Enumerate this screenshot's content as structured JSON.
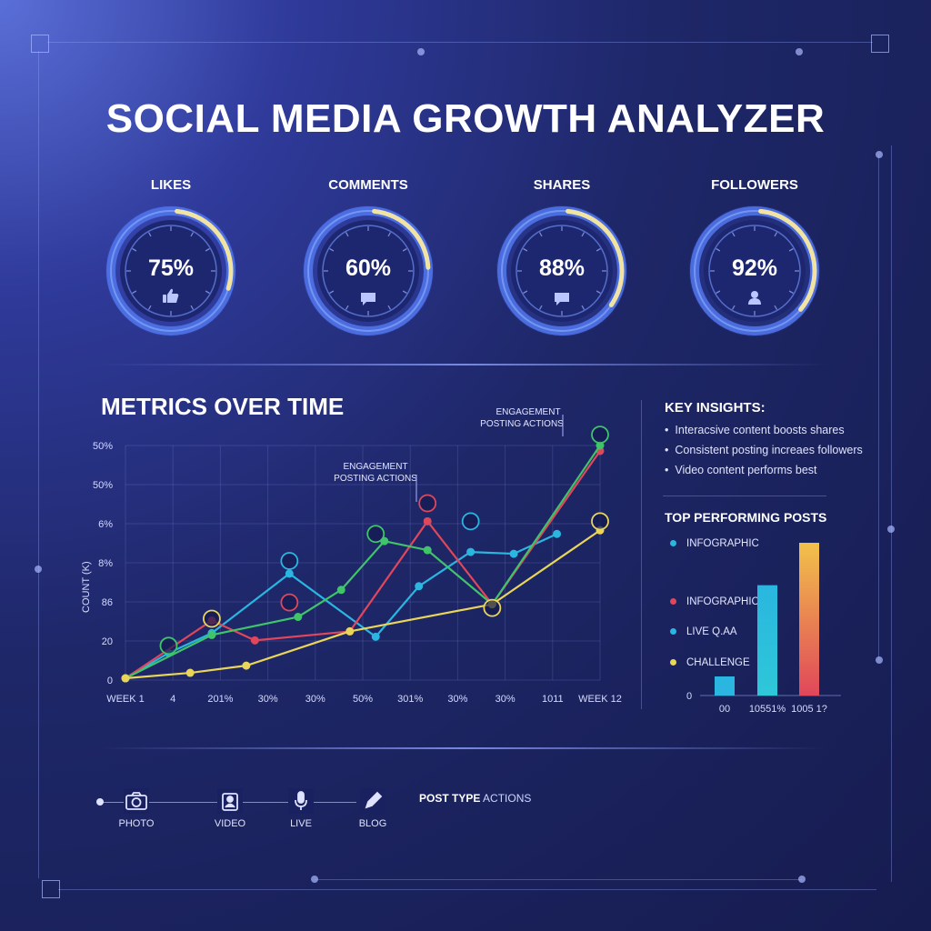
{
  "title": "SOCIAL MEDIA GROWTH ANALYZER",
  "gauges": [
    {
      "label": "LIKES",
      "value_text": "75%",
      "value": 75,
      "icon": "thumbs-up-icon"
    },
    {
      "label": "COMMENTS",
      "value_text": "60%",
      "value": 60,
      "icon": "comment-icon"
    },
    {
      "label": "SHARES",
      "value_text": "88%",
      "value": 88,
      "icon": "comment-icon"
    },
    {
      "label": "FOLLOWERS",
      "value_text": "92%",
      "value": 92,
      "icon": "user-icon"
    }
  ],
  "metrics": {
    "title": "METRICS OVER TIME",
    "annotation_top": [
      "ENGAGEMENT",
      "POSTING ACTIONS"
    ],
    "annotation_mid": [
      "ENGAGEMENT",
      "POSTING ACTIONS"
    ]
  },
  "insights": {
    "title": "KEY INSIGHTS:",
    "items": [
      "Interacsive content boosts shares",
      "Consistent posting increaes followers",
      "Video content performs best"
    ]
  },
  "top_posts": {
    "title": "TOP PERFORMING POSTS",
    "legend": [
      {
        "label": "INFOGRAPHIC",
        "color": "#2ab6e0"
      },
      {
        "label": "INFOGRAPHIC",
        "color": "#e0475a"
      },
      {
        "label": "LIVE Q.AA",
        "color": "#2ab6e0"
      },
      {
        "label": "CHALLENGE",
        "color": "#e8d55a"
      }
    ],
    "y_tick": "0"
  },
  "post_types": {
    "title_bold": "POST TYPE",
    "title_rest": " ACTIONS",
    "items": [
      {
        "label": "PHOTO",
        "icon": "camera-icon"
      },
      {
        "label": "VIDEO",
        "icon": "video-person-icon"
      },
      {
        "label": "LIVE",
        "icon": "microphone-icon"
      },
      {
        "label": "BLOG",
        "icon": "pencil-icon"
      }
    ]
  },
  "chart_data": [
    {
      "type": "line",
      "title": "METRICS OVER TIME",
      "ylabel": "COUNT (K)",
      "xlabel": "",
      "x_tick_labels": [
        "WEEK 1",
        "4",
        "201%",
        "30%",
        "30%",
        "50%",
        "301%",
        "30%",
        "30%",
        "1011",
        "WEEK 12"
      ],
      "y_tick_labels": [
        "0",
        "20",
        "86",
        "8%",
        "6%",
        "50%",
        "50%"
      ],
      "grid": true,
      "series": [
        {
          "color": "#2ab6e0",
          "x": [
            1,
            2,
            3,
            4.8,
            6.8,
            7.8,
            9,
            10,
            11
          ],
          "y": [
            1,
            15,
            26,
            59,
            24,
            52,
            71,
            70,
            81
          ]
        },
        {
          "color": "#e0475a",
          "x": [
            1,
            3,
            4,
            6.2,
            8,
            9.5,
            12
          ],
          "y": [
            1,
            33,
            22,
            27,
            88,
            42,
            127
          ]
        },
        {
          "color": "#3fc46a",
          "x": [
            1,
            3,
            5,
            6,
            7,
            8,
            9.5,
            12
          ],
          "y": [
            1,
            25,
            35,
            50,
            77,
            72,
            42,
            135
          ]
        },
        {
          "color": "#e8d55a",
          "x": [
            1,
            2.5,
            3.8,
            6.2,
            9.5,
            12
          ],
          "y": [
            1,
            4,
            8,
            27,
            42,
            83
          ]
        }
      ]
    },
    {
      "type": "bar",
      "title": "TOP PERFORMING POSTS",
      "categories": [
        "00",
        "10551%",
        "1005 1?"
      ],
      "values": [
        9,
        52,
        72
      ],
      "y_tick_labels": [
        "0"
      ]
    }
  ]
}
